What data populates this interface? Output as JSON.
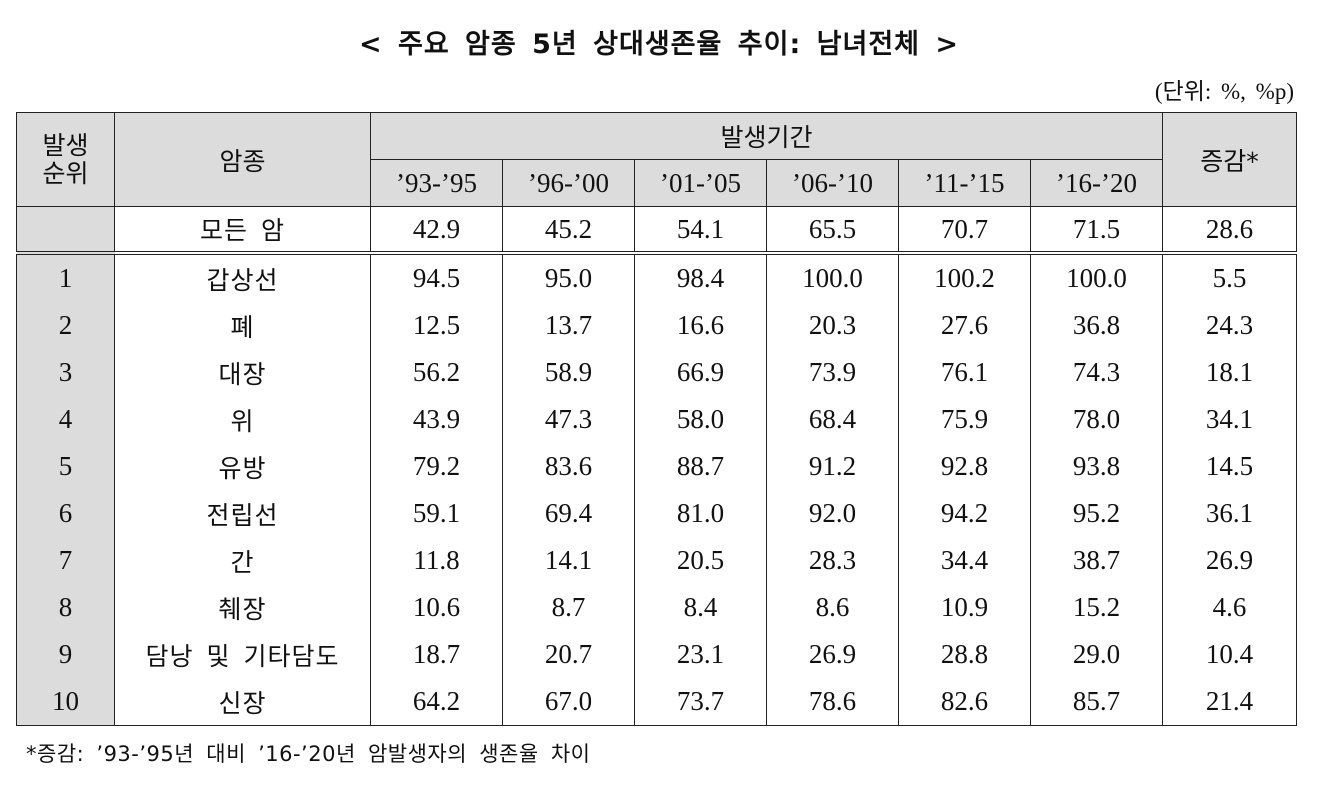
{
  "title": "< 주요 암종 5년 상대생존율 추이: 남녀전체 >",
  "unit": "(단위: %, %p)",
  "headers": {
    "rank_line1": "발생",
    "rank_line2": "순위",
    "cancer": "암종",
    "period_group": "발생기간",
    "periods": [
      "’93-’95",
      "’96-’00",
      "’01-’05",
      "’06-’10",
      "’11-’15",
      "’16-’20"
    ],
    "change": "증감*"
  },
  "all_cancers": {
    "label": "모든 암",
    "values": [
      "42.9",
      "45.2",
      "54.1",
      "65.5",
      "70.7",
      "71.5"
    ],
    "change": "28.6"
  },
  "rows": [
    {
      "rank": "1",
      "cancer": "갑상선",
      "values": [
        "94.5",
        "95.0",
        "98.4",
        "100.0",
        "100.2",
        "100.0"
      ],
      "change": "5.5"
    },
    {
      "rank": "2",
      "cancer": "폐",
      "values": [
        "12.5",
        "13.7",
        "16.6",
        "20.3",
        "27.6",
        "36.8"
      ],
      "change": "24.3"
    },
    {
      "rank": "3",
      "cancer": "대장",
      "values": [
        "56.2",
        "58.9",
        "66.9",
        "73.9",
        "76.1",
        "74.3"
      ],
      "change": "18.1"
    },
    {
      "rank": "4",
      "cancer": "위",
      "values": [
        "43.9",
        "47.3",
        "58.0",
        "68.4",
        "75.9",
        "78.0"
      ],
      "change": "34.1"
    },
    {
      "rank": "5",
      "cancer": "유방",
      "values": [
        "79.2",
        "83.6",
        "88.7",
        "91.2",
        "92.8",
        "93.8"
      ],
      "change": "14.5"
    },
    {
      "rank": "6",
      "cancer": "전립선",
      "values": [
        "59.1",
        "69.4",
        "81.0",
        "92.0",
        "94.2",
        "95.2"
      ],
      "change": "36.1"
    },
    {
      "rank": "7",
      "cancer": "간",
      "values": [
        "11.8",
        "14.1",
        "20.5",
        "28.3",
        "34.4",
        "38.7"
      ],
      "change": "26.9"
    },
    {
      "rank": "8",
      "cancer": "췌장",
      "values": [
        "10.6",
        "8.7",
        "8.4",
        "8.6",
        "10.9",
        "15.2"
      ],
      "change": "4.6"
    },
    {
      "rank": "9",
      "cancer": "담낭 및 기타담도",
      "values": [
        "18.7",
        "20.7",
        "23.1",
        "26.9",
        "28.8",
        "29.0"
      ],
      "change": "10.4"
    },
    {
      "rank": "10",
      "cancer": "신장",
      "values": [
        "64.2",
        "67.0",
        "73.7",
        "78.6",
        "82.6",
        "85.7"
      ],
      "change": "21.4"
    }
  ],
  "footnote": "*증감: ’93-’95년 대비 ’16-’20년 암발생자의 생존율 차이"
}
